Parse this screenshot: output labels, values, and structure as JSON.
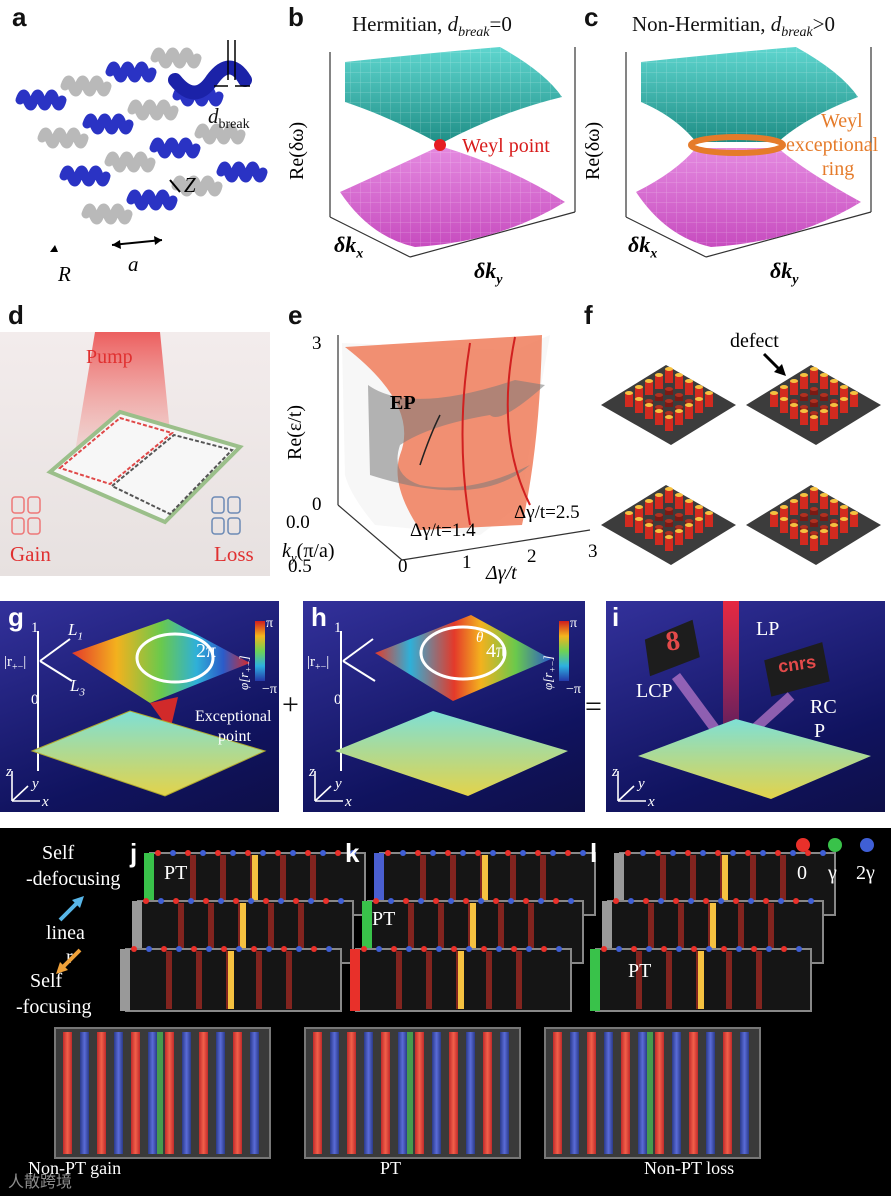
{
  "panels": {
    "a": {
      "label": "a",
      "d_break": "d",
      "d_break_sub": "break",
      "R": "R",
      "a_len": "a",
      "Z": "Z"
    },
    "b": {
      "label": "b",
      "title_pre": "Hermitian, ",
      "title_d": "d",
      "title_sub": "break",
      "title_post": "=0",
      "yaxis": "Re(δω)",
      "kx": "δk",
      "kx_sub": "x",
      "ky": "δk",
      "ky_sub": "y",
      "annotation": "Weyl point"
    },
    "c": {
      "label": "c",
      "title_pre": "Non-Hermitian, ",
      "title_d": "d",
      "title_sub": "break",
      "title_post": ">0",
      "yaxis": "Re(δω)",
      "kx": "δk",
      "kx_sub": "x",
      "ky": "δk",
      "ky_sub": "y",
      "annotation_1": "Weyl",
      "annotation_2": "exceptional",
      "annotation_3": "ring"
    },
    "d": {
      "label": "d",
      "pump": "Pump",
      "gain": "Gain",
      "loss": "Loss"
    },
    "e": {
      "label": "e",
      "yaxis": "Re(ε/t)",
      "ytick_top": "3",
      "ytick_bottom": "0",
      "ky_label": "k",
      "ky_sub": "y",
      "ky_unit": "(π/a)",
      "ky_tick_0": "0.0",
      "ky_tick_1": "0.5",
      "x_label": "Δγ/t",
      "x_ticks": [
        "0",
        "1",
        "2",
        "3"
      ],
      "ep": "EP",
      "slice_1": "Δγ/t=1.4",
      "slice_2": "Δγ/t=2.5"
    },
    "f": {
      "label": "f",
      "defect": "defect"
    },
    "g": {
      "label": "g",
      "tick_top": "1",
      "tick_bottom": "0",
      "r_label": "|r",
      "r_sub": "+−",
      "r_close": "|",
      "L1": "L",
      "L1_sub": "1",
      "L3": "L",
      "L3_sub": "3",
      "winding": "2π",
      "ep_1": "Exceptional",
      "ep_2": "point",
      "cb_top": "π",
      "cb_bottom": "−π",
      "cb_label": "φ[r",
      "cb_label_sub": "+−",
      "cb_label_close": "]",
      "axis_z": "z",
      "axis_y": "y",
      "axis_x": "x"
    },
    "h": {
      "label": "h",
      "tick_top": "1",
      "tick_bottom": "0",
      "r_label": "|r",
      "r_sub": "+−",
      "r_close": "|",
      "theta": "θ",
      "winding": "4π",
      "cb_top": "π",
      "cb_bottom": "−π",
      "cb_label": "φ[r",
      "cb_label_sub": "+−",
      "cb_label_close": "]",
      "axis_z": "z",
      "axis_y": "y",
      "axis_x": "x"
    },
    "i": {
      "label": "i",
      "lp": "LP",
      "lcp": "LCP",
      "rcp_1": "RC",
      "rcp_2": "P",
      "logo_left": "8",
      "logo_right": "cnrs",
      "axis_z": "z",
      "axis_y": "y",
      "axis_x": "x"
    },
    "plus": "+",
    "equals": "=",
    "j": {
      "label": "j",
      "pt": "PT",
      "bottom": "Non-PT gain"
    },
    "k": {
      "label": "k",
      "pt": "PT",
      "bottom": "PT"
    },
    "l": {
      "label": "l",
      "pt": "PT",
      "bottom": "Non-PT loss"
    },
    "side": {
      "self_def_1": "Self",
      "self_def_2": "-defocusing",
      "linear_1": "linea",
      "linear_2": "r",
      "self_foc_1": "Self",
      "self_foc_2": "-focusing"
    },
    "legend": {
      "items": [
        {
          "label": "0",
          "color": "#e8302a"
        },
        {
          "label": "γ",
          "color": "#39c24a"
        },
        {
          "label": "2γ",
          "color": "#3f5fd6"
        }
      ]
    },
    "watermark": "人散跨境",
    "colors": {
      "teal": "#2aa39a",
      "magenta": "#d24fc8",
      "weyl_red": "#e51c23",
      "ring_orange": "#e57b2a",
      "salmon": "#f07c5a"
    }
  }
}
